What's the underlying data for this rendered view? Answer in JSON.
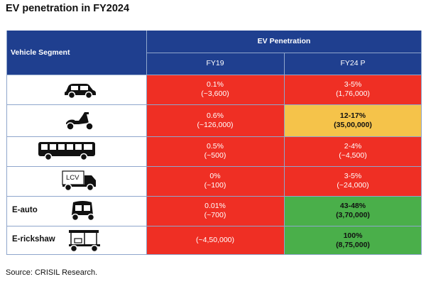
{
  "title": "EV penetration in FY2024",
  "header": {
    "segment_label": "Vehicle Segment",
    "group_label": "EV Penetration",
    "col1": "FY19",
    "col2": "FY24 P"
  },
  "rows": [
    {
      "icon": "car-icon",
      "label": "",
      "fy19_pct": "0.1%",
      "fy19_units": "(~3,600)",
      "fy24_pct": "3-5%",
      "fy24_units": "(1,76,000)",
      "fy24_color": "red"
    },
    {
      "icon": "scooter-icon",
      "label": "",
      "fy19_pct": "0.6%",
      "fy19_units": "(~126,000)",
      "fy24_pct": "12-17%",
      "fy24_units": "(35,00,000)",
      "fy24_color": "yellow"
    },
    {
      "icon": "bus-icon",
      "label": "",
      "fy19_pct": "0.5%",
      "fy19_units": "(~500)",
      "fy24_pct": "2-4%",
      "fy24_units": "(~4,500)",
      "fy24_color": "red"
    },
    {
      "icon": "lcv-truck-icon",
      "icon_text": "LCV",
      "label": "",
      "fy19_pct": "0%",
      "fy19_units": "(~100)",
      "fy24_pct": "3-5%",
      "fy24_units": "(~24,000)",
      "fy24_color": "red"
    },
    {
      "icon": "auto-rickshaw-icon",
      "label": "E-auto",
      "fy19_pct": "0.01%",
      "fy19_units": "(~700)",
      "fy24_pct": "43-48%",
      "fy24_units": "(3,70,000)",
      "fy24_color": "green"
    },
    {
      "icon": "e-rickshaw-icon",
      "label": "E-rickshaw",
      "fy19_pct": "",
      "fy19_units": "(~4,50,000)",
      "fy24_pct": "100%",
      "fy24_units": "(8,75,000)",
      "fy24_color": "green"
    }
  ],
  "source": "Source:  CRISIL  Research.",
  "colors": {
    "header": "#1f3f8f",
    "red": "#ef2f24",
    "yellow": "#f5c34a",
    "green": "#4aaf4a"
  }
}
